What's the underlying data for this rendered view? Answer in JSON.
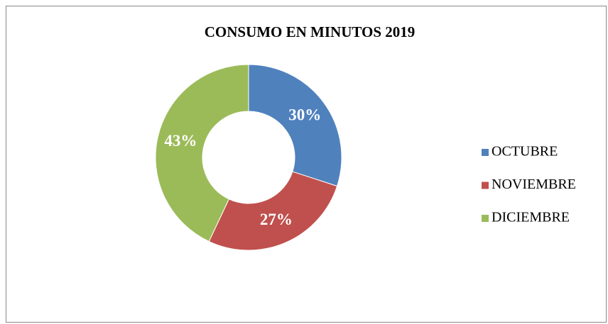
{
  "chart_data": {
    "type": "donut",
    "title": "CONSUMO EN MINUTOS 2019",
    "categories": [
      "OCTUBRE",
      "NOVIEMBRE",
      "DICIEMBRE"
    ],
    "values": [
      30,
      27,
      43
    ],
    "value_labels": [
      "30%",
      "27%",
      "43%"
    ],
    "colors": [
      "#4f81bd",
      "#c0504d",
      "#9bbb59"
    ],
    "legend": "right"
  }
}
